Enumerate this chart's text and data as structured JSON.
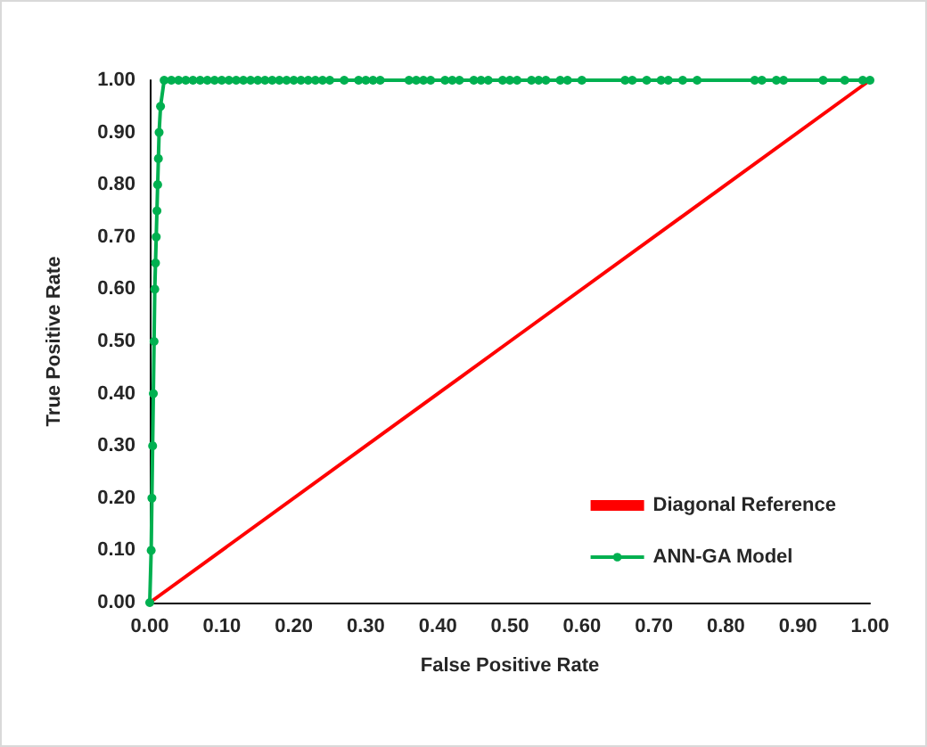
{
  "chart_data": {
    "type": "line",
    "xlabel": "False Positive Rate",
    "ylabel": "True Positive Rate",
    "xlim": [
      0,
      1
    ],
    "ylim": [
      0,
      1
    ],
    "xticks": [
      {
        "value": 0,
        "label": "0.00"
      },
      {
        "value": 0.1,
        "label": "0.10"
      },
      {
        "value": 0.2,
        "label": "0.20"
      },
      {
        "value": 0.3,
        "label": "0.30"
      },
      {
        "value": 0.4,
        "label": "0.40"
      },
      {
        "value": 0.5,
        "label": "0.50"
      },
      {
        "value": 0.6,
        "label": "0.60"
      },
      {
        "value": 0.7,
        "label": "0.70"
      },
      {
        "value": 0.8,
        "label": "0.80"
      },
      {
        "value": 0.9,
        "label": "0.90"
      },
      {
        "value": 1,
        "label": "1.00"
      }
    ],
    "yticks": [
      {
        "value": 0,
        "label": "0.00"
      },
      {
        "value": 0.1,
        "label": "0.10"
      },
      {
        "value": 0.2,
        "label": "0.20"
      },
      {
        "value": 0.3,
        "label": "0.30"
      },
      {
        "value": 0.4,
        "label": "0.40"
      },
      {
        "value": 0.5,
        "label": "0.50"
      },
      {
        "value": 0.6,
        "label": "0.60"
      },
      {
        "value": 0.7,
        "label": "0.70"
      },
      {
        "value": 0.8,
        "label": "0.80"
      },
      {
        "value": 0.9,
        "label": "0.90"
      },
      {
        "value": 1,
        "label": "1.00"
      }
    ],
    "grid": false,
    "legend": "bottom right",
    "series": [
      {
        "name": "Diagonal Reference",
        "color": "#ff0000",
        "marker": "none",
        "x": [
          0,
          0.5,
          1
        ],
        "values": [
          0,
          0.5,
          1
        ]
      },
      {
        "name": "ANN-GA Model",
        "color": "#00b050",
        "marker": "circle",
        "x": [
          0,
          0.002,
          0.003,
          0.004,
          0.005,
          0.006,
          0.007,
          0.008,
          0.009,
          0.01,
          0.011,
          0.012,
          0.013,
          0.015,
          0.02,
          0.03,
          0.04,
          0.05,
          0.06,
          0.07,
          0.08,
          0.09,
          0.1,
          0.11,
          0.12,
          0.13,
          0.14,
          0.15,
          0.16,
          0.17,
          0.18,
          0.19,
          0.2,
          0.21,
          0.22,
          0.23,
          0.24,
          0.25,
          0.27,
          0.29,
          0.3,
          0.31,
          0.32,
          0.36,
          0.37,
          0.38,
          0.39,
          0.41,
          0.42,
          0.43,
          0.45,
          0.46,
          0.47,
          0.49,
          0.5,
          0.51,
          0.53,
          0.54,
          0.55,
          0.57,
          0.58,
          0.6,
          0.66,
          0.67,
          0.69,
          0.71,
          0.72,
          0.74,
          0.76,
          0.84,
          0.85,
          0.87,
          0.88,
          0.935,
          0.965,
          0.99,
          1
        ],
        "values": [
          0,
          0.1,
          0.2,
          0.3,
          0.4,
          0.5,
          0.6,
          0.65,
          0.7,
          0.75,
          0.8,
          0.85,
          0.9,
          0.95,
          1,
          1,
          1,
          1,
          1,
          1,
          1,
          1,
          1,
          1,
          1,
          1,
          1,
          1,
          1,
          1,
          1,
          1,
          1,
          1,
          1,
          1,
          1,
          1,
          1,
          1,
          1,
          1,
          1,
          1,
          1,
          1,
          1,
          1,
          1,
          1,
          1,
          1,
          1,
          1,
          1,
          1,
          1,
          1,
          1,
          1,
          1,
          1,
          1,
          1,
          1,
          1,
          1,
          1,
          1,
          1,
          1,
          1,
          1,
          1,
          1,
          1,
          1
        ]
      }
    ]
  }
}
